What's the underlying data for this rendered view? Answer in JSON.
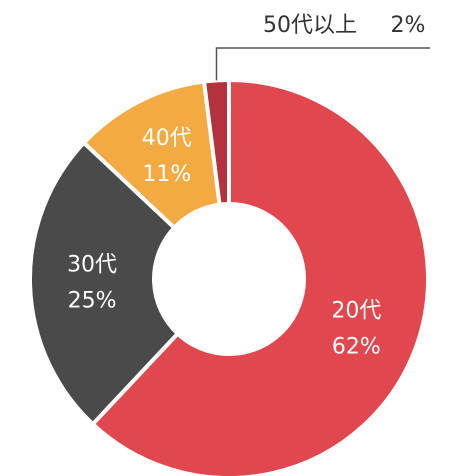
{
  "chart_data": {
    "type": "donut",
    "categories": [
      "20代",
      "30代",
      "40代",
      "50代以上"
    ],
    "values": [
      62,
      25,
      11,
      2
    ],
    "value_labels": [
      "62%",
      "25%",
      "11%",
      "2%"
    ],
    "colors": [
      "#e1474f",
      "#4b4a4b",
      "#f3aa43",
      "#b3323d"
    ]
  }
}
